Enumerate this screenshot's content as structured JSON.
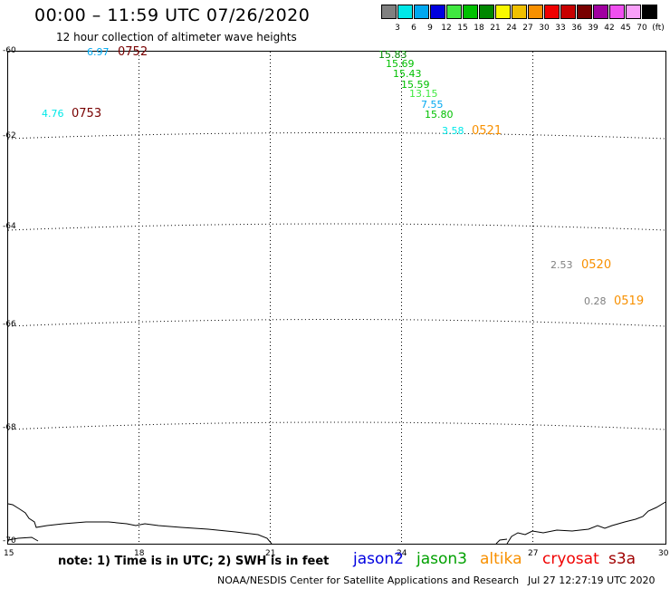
{
  "header": {
    "title": "00:00 – 11:59 UTC 07/26/2020",
    "subtitle": "12 hour collection of altimeter wave heights"
  },
  "legend": {
    "unit": "(ft)",
    "swatches": [
      {
        "label": "3",
        "color": "#808080"
      },
      {
        "label": "6",
        "color": "#00e8e8"
      },
      {
        "label": "9",
        "color": "#00a8f0"
      },
      {
        "label": "12",
        "color": "#0000e0"
      },
      {
        "label": "15",
        "color": "#40e840"
      },
      {
        "label": "18",
        "color": "#00c000"
      },
      {
        "label": "21",
        "color": "#008800"
      },
      {
        "label": "24",
        "color": "#f8f800"
      },
      {
        "label": "27",
        "color": "#f0c000"
      },
      {
        "label": "30",
        "color": "#f89000"
      },
      {
        "label": "33",
        "color": "#f00000"
      },
      {
        "label": "36",
        "color": "#c80000"
      },
      {
        "label": "39",
        "color": "#780000"
      },
      {
        "label": "42",
        "color": "#a000a0"
      },
      {
        "label": "45",
        "color": "#f050f0"
      },
      {
        "label": "70",
        "color": "#f8a0f8"
      },
      {
        "label": "",
        "color": "#000000"
      }
    ]
  },
  "map": {
    "lat_labels": [
      "-60",
      "-62",
      "-64",
      "-66",
      "-68",
      "-70"
    ],
    "lon_labels": [
      "15",
      "18",
      "21",
      "24",
      "27",
      "30"
    ],
    "observations": [
      {
        "text": "6.97",
        "color": "#00a8f0"
      },
      {
        "text": "4.76",
        "color": "#00e8e8"
      },
      {
        "text": "15.83",
        "color": "#008800"
      },
      {
        "text": "15.69",
        "color": "#00c000"
      },
      {
        "text": "15.43",
        "color": "#00c000"
      },
      {
        "text": "15.59",
        "color": "#00c000"
      },
      {
        "text": "13.15",
        "color": "#40e840"
      },
      {
        "text": "7.55",
        "color": "#00a8f0"
      },
      {
        "text": "15.80",
        "color": "#00c000"
      },
      {
        "text": "3.58",
        "color": "#00e8e8"
      },
      {
        "text": "2.53",
        "color": "#808080"
      },
      {
        "text": "0.28",
        "color": "#808080"
      }
    ],
    "times": [
      {
        "text": "0752",
        "color": "#780000"
      },
      {
        "text": "0753",
        "color": "#780000"
      },
      {
        "text": "0521",
        "color": "#f89000"
      },
      {
        "text": "0520",
        "color": "#f89000"
      },
      {
        "text": "0519",
        "color": "#f89000"
      }
    ]
  },
  "note": "note: 1) Time is in UTC; 2) SWH is in feet",
  "satellites": [
    {
      "name": "jason2",
      "color": "#0000e0"
    },
    {
      "name": "jason3",
      "color": "#00a000"
    },
    {
      "name": "altika",
      "color": "#f89000"
    },
    {
      "name": "cryosat",
      "color": "#f00000"
    },
    {
      "name": "s3a",
      "color": "#a00000"
    }
  ],
  "footer": {
    "credit": "NOAA/NESDIS Center for Satellite Applications and Research",
    "timestamp": "Jul 27 12:27:19 UTC 2020"
  }
}
